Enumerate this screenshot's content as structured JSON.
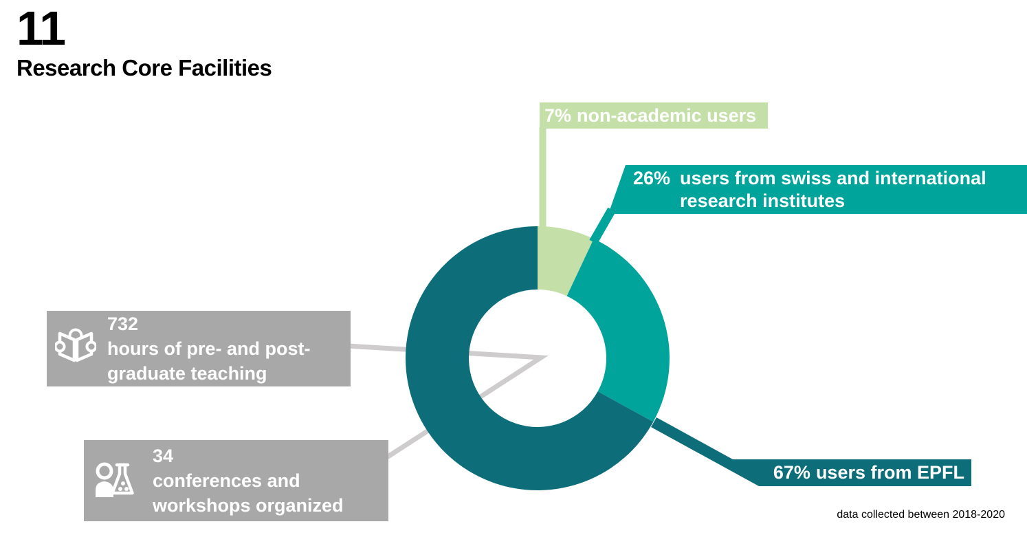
{
  "header": {
    "number": "11",
    "title": "Research Core Facilities"
  },
  "footnote": "data collected between 2018-2020",
  "colors": {
    "green": "#c5dfa9",
    "teal": "#00a49b",
    "dark_teal": "#0d6e79",
    "gray_box": "#a9a8a8",
    "leader_gray": "#cecccc",
    "label_text": "#ffffff"
  },
  "donut_callouts": {
    "non_academic": {
      "pct": "7%",
      "label": "non-academic users"
    },
    "institutes": {
      "pct": "26%",
      "label_line1": "users from swiss and international",
      "label_line2": "research institutes"
    },
    "epfl": {
      "pct": "67%",
      "label": "users from EPFL"
    }
  },
  "stat_boxes": [
    {
      "icon": "book-reader-icon",
      "value": "732",
      "line1": "hours of pre- and post-",
      "line2": "graduate teaching"
    },
    {
      "icon": "person-flask-icon",
      "value": "34",
      "line1": "conferences and",
      "line2": "workshops organized"
    }
  ],
  "chart_data": {
    "type": "pie",
    "donut": true,
    "title": "Research Core Facilities",
    "unit": "percent",
    "start_angle_deg": 0,
    "clockwise": true,
    "slices": [
      {
        "label": "non-academic users",
        "value": 7,
        "color": "#c5dfa9"
      },
      {
        "label": "users from swiss and international research institutes",
        "value": 26,
        "color": "#00a49b"
      },
      {
        "label": "users from EPFL",
        "value": 67,
        "color": "#0d6e79"
      }
    ],
    "annotations": [
      {
        "value": 732,
        "label": "hours of pre- and post-graduate teaching"
      },
      {
        "value": 34,
        "label": "conferences and workshops organized"
      }
    ],
    "footnote": "data collected between 2018-2020"
  }
}
